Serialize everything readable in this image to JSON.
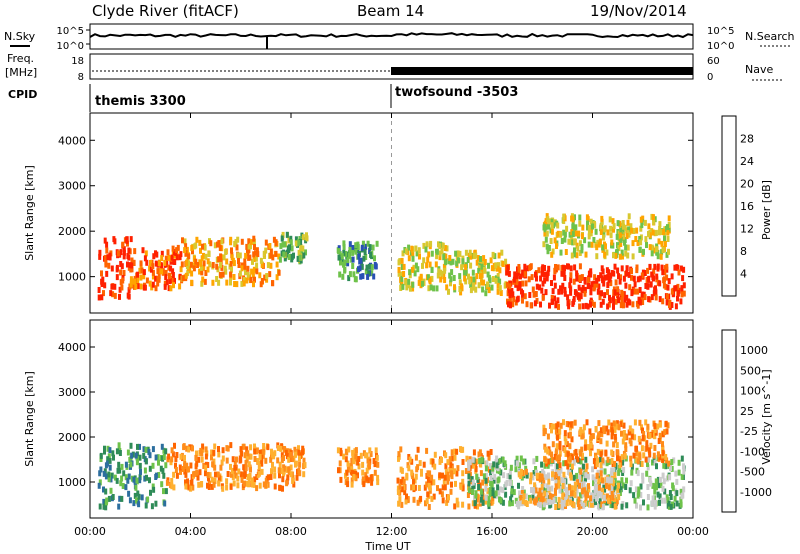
{
  "header": {
    "station": "Clyde River (fitACF)",
    "beam": "Beam 14",
    "date": "19/Nov/2014"
  },
  "side_labels": {
    "n_sky": "N.Sky",
    "freq_line1": "Freq.",
    "freq_line2": "[MHz]",
    "cpid": "CPID",
    "n_search": "N.Search",
    "nave": "Nave"
  },
  "noise_panel": {
    "left_ticks": [
      "10^5",
      "10^0"
    ],
    "right_ticks": [
      "10^5",
      "10^0"
    ]
  },
  "freq_panel": {
    "left_ticks": [
      "18",
      "8"
    ],
    "right_ticks": [
      "60",
      "0"
    ]
  },
  "cpid_panel": {
    "programs": [
      "themis 3300",
      "twofsound -3503"
    ],
    "switch_hour": 12
  },
  "x_axis": {
    "label": "Time UT",
    "ticks": [
      "00:00",
      "04:00",
      "08:00",
      "12:00",
      "16:00",
      "20:00",
      "00:00"
    ],
    "range_hours": [
      0,
      24
    ]
  },
  "colors": {
    "power": [
      "#0000ff",
      "#2850b4",
      "#2e8b57",
      "#6ec24a",
      "#d8c830",
      "#ffa500",
      "#ff6400",
      "#ff2000"
    ],
    "velocity": [
      "#1432a0",
      "#2c6e9e",
      "#2e8b57",
      "#6ec24a",
      "#cccccc",
      "#ffb030",
      "#ff8c1a",
      "#ff6400",
      "#ff1a1a"
    ]
  },
  "chart_data": [
    {
      "type": "heatmap",
      "panel": "power",
      "ylabel": "Slant Range [km]",
      "ylim": [
        200,
        4600
      ],
      "yticks": [
        "1000",
        "2000",
        "3000",
        "4000"
      ],
      "colorbar_label": "Power [dB]",
      "colorbar_ticks": [
        "4",
        "8",
        "12",
        "16",
        "20",
        "24",
        "28"
      ],
      "scatter_regions": [
        {
          "t": [
            0.3,
            1.6
          ],
          "r": [
            600,
            1900
          ],
          "level": 7
        },
        {
          "t": [
            1.5,
            3.6
          ],
          "r": [
            800,
            1700
          ],
          "level": 6
        },
        {
          "t": [
            3.6,
            7.5
          ],
          "r": [
            900,
            1900
          ],
          "level": 5
        },
        {
          "t": [
            7.5,
            8.6
          ],
          "r": [
            1400,
            2000
          ],
          "level": 3
        },
        {
          "t": [
            9.8,
            11.4
          ],
          "r": [
            1000,
            1800
          ],
          "level": 2
        },
        {
          "t": [
            12.2,
            14.2
          ],
          "r": [
            800,
            1800
          ],
          "level": 4
        },
        {
          "t": [
            14.2,
            16.5
          ],
          "r": [
            700,
            1600
          ],
          "level": 4
        },
        {
          "t": [
            16.5,
            23.6
          ],
          "r": [
            400,
            1300
          ],
          "level": 7
        },
        {
          "t": [
            18.0,
            23.0
          ],
          "r": [
            1500,
            2400
          ],
          "level": 4
        }
      ]
    },
    {
      "type": "heatmap",
      "panel": "velocity",
      "ylabel": "Slant Range [km]",
      "ylim": [
        200,
        4600
      ],
      "yticks": [
        "1000",
        "2000",
        "3000",
        "4000"
      ],
      "colorbar_label": "Velocity [m s^-1]",
      "colorbar_ticks": [
        "1000",
        "500",
        "100",
        "25",
        "-25",
        "-100",
        "-500",
        "-1000"
      ],
      "scatter_regions": [
        {
          "t": [
            0.3,
            3.0
          ],
          "r": [
            500,
            1900
          ],
          "level": 2
        },
        {
          "t": [
            3.0,
            8.5
          ],
          "r": [
            900,
            1900
          ],
          "level": 6
        },
        {
          "t": [
            9.8,
            11.4
          ],
          "r": [
            1000,
            1800
          ],
          "level": 6
        },
        {
          "t": [
            12.2,
            16.0
          ],
          "r": [
            500,
            1800
          ],
          "level": 6
        },
        {
          "t": [
            15.0,
            23.6
          ],
          "r": [
            500,
            1600
          ],
          "level": 3
        },
        {
          "t": [
            17.0,
            21.0
          ],
          "r": [
            500,
            1300
          ],
          "level": 5
        },
        {
          "t": [
            18.0,
            23.0
          ],
          "r": [
            1400,
            2400
          ],
          "level": 6
        }
      ]
    }
  ]
}
